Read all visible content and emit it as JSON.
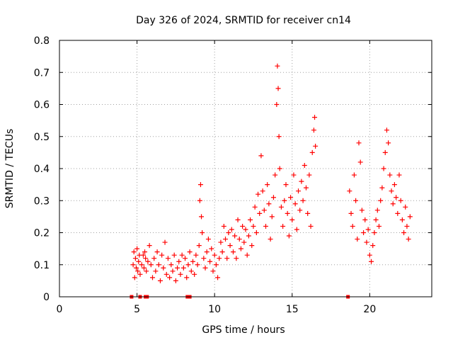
{
  "chart_data": {
    "type": "scatter",
    "title": "Day 326 of 2024, SRMTID for receiver cn14",
    "xlabel": "GPS time / hours",
    "ylabel": "SRMTID / TECUs",
    "xlim": [
      0,
      24
    ],
    "ylim": [
      0,
      0.8
    ],
    "xticks": [
      0,
      5,
      10,
      15,
      20
    ],
    "xtick_labels": [
      "0",
      "5",
      "10",
      "15",
      "20"
    ],
    "yticks": [
      0,
      0.1,
      0.2,
      0.3,
      0.4,
      0.5,
      0.6,
      0.7,
      0.8
    ],
    "ytick_labels": [
      "0",
      "0.1",
      "0.2",
      "0.3",
      "0.4",
      "0.5",
      "0.6",
      "0.7",
      "0.8"
    ],
    "grid": true,
    "marker": "+",
    "series_color": "#ff0000",
    "series": [
      {
        "name": "SRMTID",
        "points": [
          [
            4.75,
            0.1
          ],
          [
            4.8,
            0.14
          ],
          [
            4.85,
            0.06
          ],
          [
            4.9,
            0.12
          ],
          [
            4.95,
            0.09
          ],
          [
            5.0,
            0.15
          ],
          [
            5.05,
            0.08
          ],
          [
            5.1,
            0.11
          ],
          [
            5.15,
            0.13
          ],
          [
            5.2,
            0.07
          ],
          [
            5.3,
            0.1
          ],
          [
            5.4,
            0.13
          ],
          [
            5.45,
            0.09
          ],
          [
            5.5,
            0.14
          ],
          [
            5.55,
            0.12
          ],
          [
            5.6,
            0.08
          ],
          [
            5.7,
            0.11
          ],
          [
            5.8,
            0.16
          ],
          [
            5.9,
            0.1
          ],
          [
            6.0,
            0.06
          ],
          [
            6.1,
            0.12
          ],
          [
            6.2,
            0.08
          ],
          [
            6.3,
            0.14
          ],
          [
            6.4,
            0.1
          ],
          [
            6.5,
            0.05
          ],
          [
            6.6,
            0.13
          ],
          [
            6.7,
            0.09
          ],
          [
            6.8,
            0.17
          ],
          [
            6.9,
            0.07
          ],
          [
            7.0,
            0.12
          ],
          [
            7.1,
            0.06
          ],
          [
            7.2,
            0.1
          ],
          [
            7.3,
            0.08
          ],
          [
            7.4,
            0.13
          ],
          [
            7.5,
            0.05
          ],
          [
            7.6,
            0.09
          ],
          [
            7.7,
            0.11
          ],
          [
            7.8,
            0.07
          ],
          [
            7.9,
            0.13
          ],
          [
            8.0,
            0.09
          ],
          [
            8.1,
            0.12
          ],
          [
            8.2,
            0.06
          ],
          [
            8.3,
            0.1
          ],
          [
            8.4,
            0.14
          ],
          [
            8.5,
            0.08
          ],
          [
            8.6,
            0.11
          ],
          [
            8.7,
            0.07
          ],
          [
            8.8,
            0.13
          ],
          [
            8.9,
            0.1
          ],
          [
            9.0,
            0.16
          ],
          [
            9.05,
            0.3
          ],
          [
            9.1,
            0.35
          ],
          [
            9.15,
            0.25
          ],
          [
            9.2,
            0.2
          ],
          [
            9.3,
            0.12
          ],
          [
            9.4,
            0.09
          ],
          [
            9.5,
            0.14
          ],
          [
            9.6,
            0.18
          ],
          [
            9.7,
            0.11
          ],
          [
            9.8,
            0.15
          ],
          [
            9.9,
            0.08
          ],
          [
            10.0,
            0.13
          ],
          [
            10.1,
            0.1
          ],
          [
            10.2,
            0.06
          ],
          [
            10.3,
            0.12
          ],
          [
            10.4,
            0.17
          ],
          [
            10.5,
            0.14
          ],
          [
            10.6,
            0.22
          ],
          [
            10.7,
            0.18
          ],
          [
            10.8,
            0.12
          ],
          [
            10.9,
            0.2
          ],
          [
            11.0,
            0.16
          ],
          [
            11.1,
            0.21
          ],
          [
            11.2,
            0.14
          ],
          [
            11.3,
            0.19
          ],
          [
            11.4,
            0.12
          ],
          [
            11.5,
            0.24
          ],
          [
            11.6,
            0.18
          ],
          [
            11.7,
            0.15
          ],
          [
            11.8,
            0.22
          ],
          [
            11.9,
            0.17
          ],
          [
            12.0,
            0.21
          ],
          [
            12.1,
            0.13
          ],
          [
            12.2,
            0.19
          ],
          [
            12.3,
            0.24
          ],
          [
            12.4,
            0.16
          ],
          [
            12.5,
            0.22
          ],
          [
            12.6,
            0.28
          ],
          [
            12.7,
            0.2
          ],
          [
            12.8,
            0.32
          ],
          [
            12.9,
            0.26
          ],
          [
            13.0,
            0.44
          ],
          [
            13.1,
            0.33
          ],
          [
            13.2,
            0.27
          ],
          [
            13.3,
            0.22
          ],
          [
            13.4,
            0.35
          ],
          [
            13.5,
            0.29
          ],
          [
            13.6,
            0.18
          ],
          [
            13.7,
            0.25
          ],
          [
            13.8,
            0.31
          ],
          [
            13.9,
            0.38
          ],
          [
            14.0,
            0.6
          ],
          [
            14.05,
            0.72
          ],
          [
            14.1,
            0.65
          ],
          [
            14.15,
            0.5
          ],
          [
            14.2,
            0.4
          ],
          [
            14.3,
            0.28
          ],
          [
            14.4,
            0.22
          ],
          [
            14.5,
            0.3
          ],
          [
            14.6,
            0.35
          ],
          [
            14.7,
            0.26
          ],
          [
            14.8,
            0.19
          ],
          [
            14.9,
            0.31
          ],
          [
            15.0,
            0.24
          ],
          [
            15.1,
            0.38
          ],
          [
            15.2,
            0.29
          ],
          [
            15.3,
            0.21
          ],
          [
            15.4,
            0.33
          ],
          [
            15.5,
            0.27
          ],
          [
            15.6,
            0.36
          ],
          [
            15.7,
            0.3
          ],
          [
            15.8,
            0.41
          ],
          [
            15.9,
            0.34
          ],
          [
            16.0,
            0.26
          ],
          [
            16.1,
            0.38
          ],
          [
            16.2,
            0.22
          ],
          [
            16.3,
            0.45
          ],
          [
            16.4,
            0.52
          ],
          [
            16.45,
            0.56
          ],
          [
            16.5,
            0.47
          ],
          [
            18.7,
            0.33
          ],
          [
            18.8,
            0.26
          ],
          [
            18.9,
            0.22
          ],
          [
            19.0,
            0.38
          ],
          [
            19.1,
            0.3
          ],
          [
            19.2,
            0.18
          ],
          [
            19.3,
            0.48
          ],
          [
            19.4,
            0.42
          ],
          [
            19.5,
            0.27
          ],
          [
            19.6,
            0.2
          ],
          [
            19.7,
            0.24
          ],
          [
            19.8,
            0.17
          ],
          [
            19.9,
            0.21
          ],
          [
            20.0,
            0.13
          ],
          [
            20.1,
            0.11
          ],
          [
            20.2,
            0.16
          ],
          [
            20.3,
            0.2
          ],
          [
            20.4,
            0.24
          ],
          [
            20.5,
            0.27
          ],
          [
            20.6,
            0.22
          ],
          [
            20.7,
            0.3
          ],
          [
            20.8,
            0.34
          ],
          [
            20.9,
            0.4
          ],
          [
            21.0,
            0.45
          ],
          [
            21.1,
            0.52
          ],
          [
            21.2,
            0.48
          ],
          [
            21.3,
            0.38
          ],
          [
            21.4,
            0.33
          ],
          [
            21.5,
            0.29
          ],
          [
            21.6,
            0.35
          ],
          [
            21.7,
            0.31
          ],
          [
            21.8,
            0.26
          ],
          [
            21.9,
            0.38
          ],
          [
            22.0,
            0.3
          ],
          [
            22.1,
            0.24
          ],
          [
            22.2,
            0.2
          ],
          [
            22.3,
            0.28
          ],
          [
            22.4,
            0.22
          ],
          [
            22.5,
            0.18
          ],
          [
            22.6,
            0.25
          ]
        ],
        "zero_points": [
          4.65,
          5.2,
          5.55,
          5.65,
          8.25,
          8.4,
          18.6
        ]
      }
    ]
  }
}
